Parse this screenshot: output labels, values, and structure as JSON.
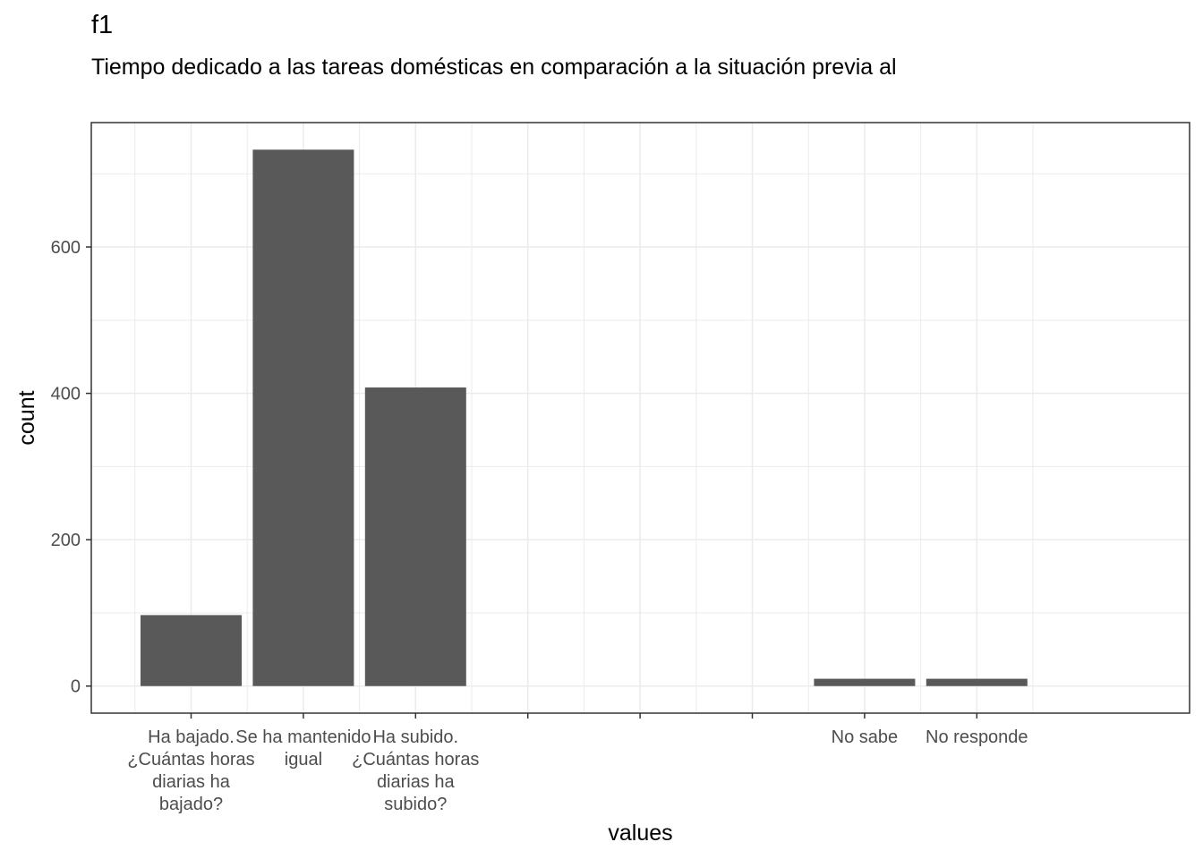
{
  "title": "f1",
  "subtitle": "Tiempo dedicado a las tareas domésticas en comparación a la situación previa al",
  "chart_data": {
    "type": "bar",
    "categories": [
      "Ha bajado. ¿Cuántas horas diarias ha bajado?",
      "Se ha mantenido igual",
      "Ha subido. ¿Cuántas horas diarias ha subido?",
      "",
      "",
      "",
      "No sabe",
      "No responde"
    ],
    "category_lines": [
      [
        "Ha bajado.",
        "¿Cuántas horas",
        "diarias ha",
        "bajado?"
      ],
      [
        "Se ha mantenido",
        "igual"
      ],
      [
        "Ha subido.",
        "¿Cuántas horas",
        "diarias ha",
        "subido?"
      ],
      [],
      [],
      [],
      [
        "No sabe"
      ],
      [
        "No responde"
      ]
    ],
    "values": [
      97,
      733,
      408,
      null,
      null,
      null,
      10,
      10
    ],
    "xlabel": "values",
    "ylabel": "count",
    "ylim": [
      -37,
      770
    ],
    "yticks": [
      0,
      200,
      400,
      600
    ],
    "grid": true,
    "bar_color": "#595959",
    "grid_color": "#ebebeb",
    "panel_border_color": "#333333"
  }
}
